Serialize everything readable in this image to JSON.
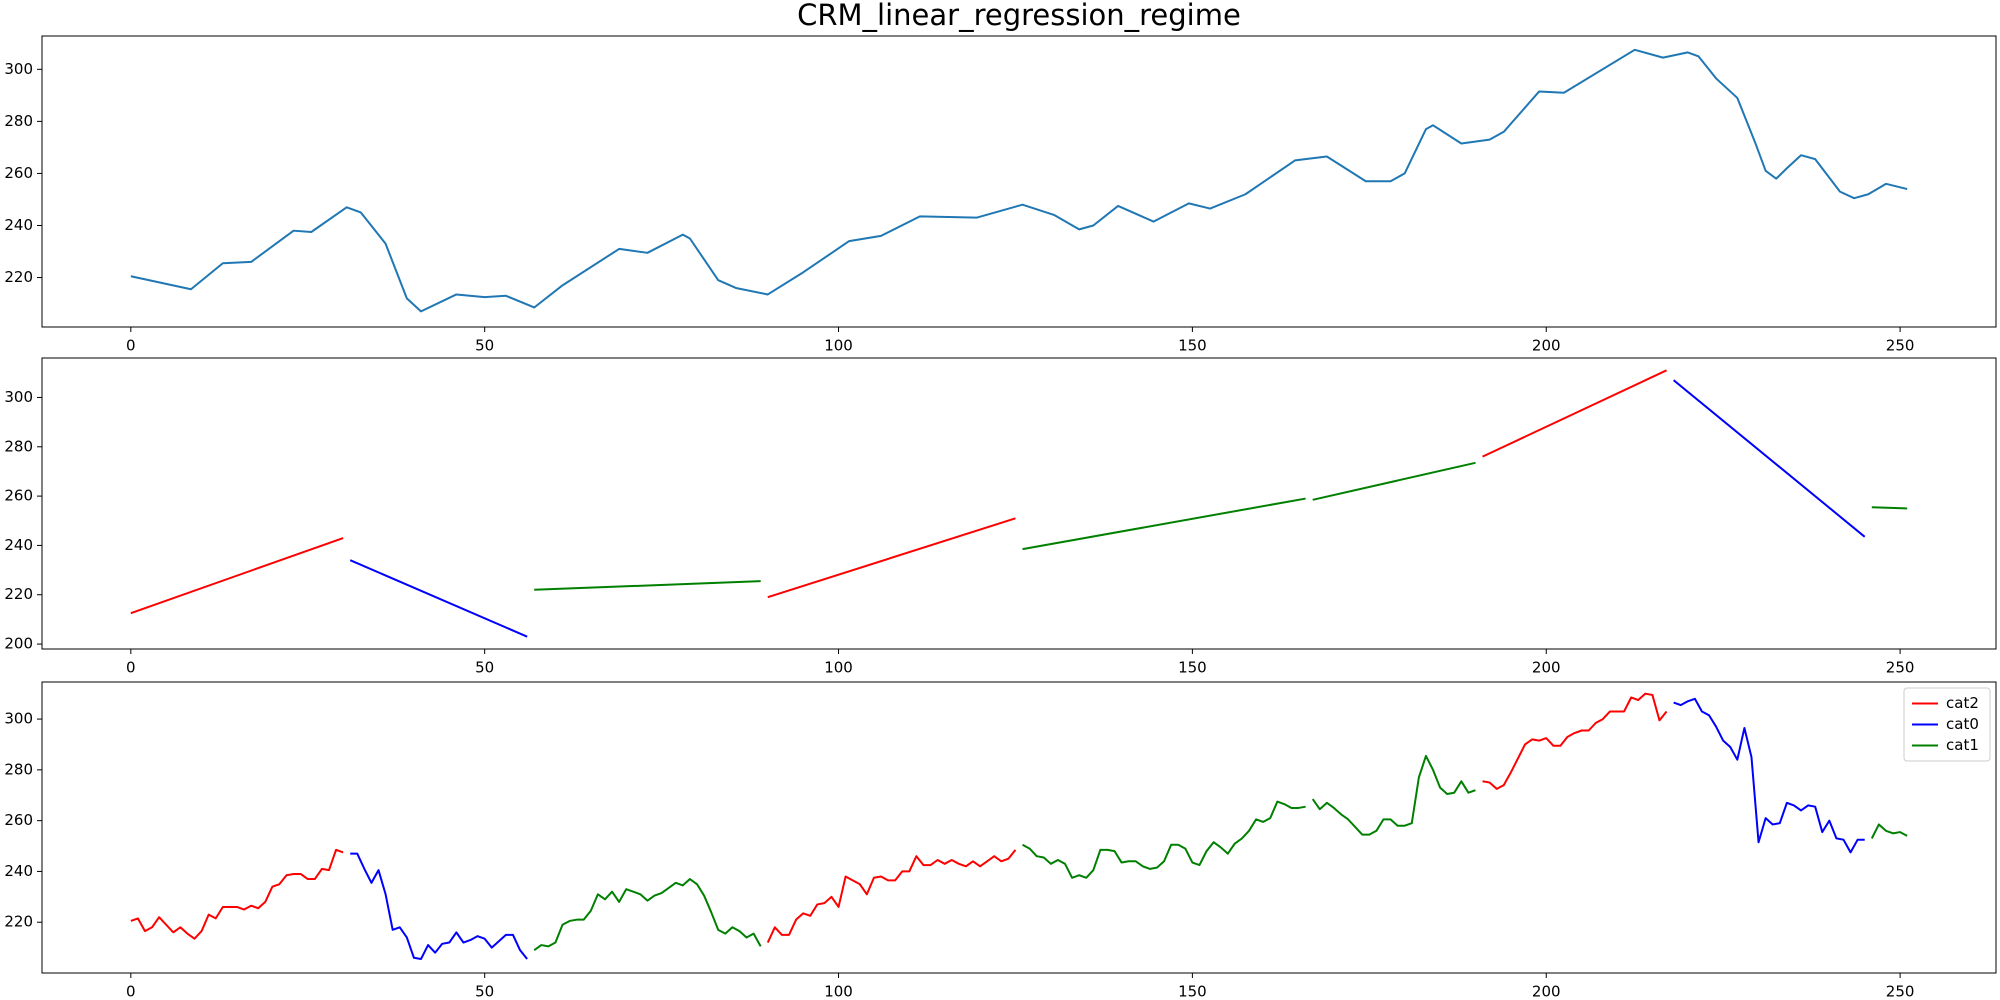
{
  "chart_data": [
    {
      "type": "line",
      "title": "CRM_linear_regression_regime",
      "xlim": [
        -12.55,
        263.55
      ],
      "ylim": [
        201,
        312.8
      ],
      "xticks": [
        0,
        50,
        100,
        150,
        200,
        250
      ],
      "yticks": [
        220,
        240,
        260,
        280,
        300
      ],
      "series": [
        {
          "color": "#1f77b4",
          "x": [
            0,
            8.5,
            13,
            17,
            23,
            25.5,
            30.5,
            32.5,
            36,
            39,
            41,
            46,
            50,
            53,
            57,
            61,
            69,
            73,
            78,
            79,
            83,
            85.5,
            90,
            95,
            101.5,
            106,
            111.5,
            119.5,
            126,
            130.5,
            134,
            136,
            139.5,
            144.5,
            149.5,
            152.5,
            157.5,
            164.5,
            169,
            174.5,
            178,
            180,
            183,
            184,
            188,
            192,
            194,
            199,
            202.5,
            212.5,
            216.5,
            220,
            221.5,
            224,
            227,
            229.5,
            231,
            232.5,
            234,
            236,
            238,
            241.5,
            243.5,
            245.5,
            248,
            251
          ],
          "values": [
            220.5,
            215.5,
            225.5,
            226,
            238,
            237.5,
            247,
            245,
            233,
            212,
            207,
            213.5,
            212.5,
            213,
            208.5,
            217,
            231,
            229.5,
            236.5,
            235,
            219,
            216,
            213.5,
            222,
            234,
            236,
            243.5,
            243,
            248,
            244,
            238.5,
            240,
            247.5,
            241.5,
            248.5,
            246.5,
            252,
            265,
            266.5,
            257,
            257,
            260,
            277,
            278.5,
            271.5,
            273,
            276,
            291.5,
            291,
            307.5,
            304.5,
            306.5,
            305,
            296.5,
            289,
            272,
            261,
            258,
            262,
            267,
            265.5,
            253,
            250.5,
            252,
            256,
            254
          ]
        }
      ]
    },
    {
      "type": "line",
      "xlim": [
        -12.55,
        263.55
      ],
      "ylim": [
        198,
        316
      ],
      "xticks": [
        0,
        50,
        100,
        150,
        200,
        250
      ],
      "yticks": [
        200,
        220,
        240,
        260,
        280,
        300
      ],
      "series": [
        {
          "color": "#ff0000",
          "x": [
            0,
            30
          ],
          "values": [
            212.5,
            243
          ]
        },
        {
          "color": "#0000ff",
          "x": [
            31,
            56
          ],
          "values": [
            234,
            203
          ]
        },
        {
          "color": "#008000",
          "x": [
            57,
            89
          ],
          "values": [
            222,
            225.5
          ]
        },
        {
          "color": "#ff0000",
          "x": [
            90,
            125
          ],
          "values": [
            219,
            251
          ]
        },
        {
          "color": "#008000",
          "x": [
            126,
            166
          ],
          "values": [
            238.5,
            259
          ]
        },
        {
          "color": "#008000",
          "x": [
            167,
            190
          ],
          "values": [
            258.5,
            273.5
          ]
        },
        {
          "color": "#ff0000",
          "x": [
            191,
            217
          ],
          "values": [
            276,
            311
          ]
        },
        {
          "color": "#0000ff",
          "x": [
            218,
            245
          ],
          "values": [
            307,
            243.5
          ]
        },
        {
          "color": "#008000",
          "x": [
            246,
            251
          ],
          "values": [
            255.5,
            255
          ]
        }
      ]
    },
    {
      "type": "line",
      "xlim": [
        -12.55,
        263.55
      ],
      "ylim": [
        200,
        314.6
      ],
      "xticks": [
        0,
        50,
        100,
        150,
        200,
        250
      ],
      "yticks": [
        220,
        240,
        260,
        280,
        300
      ],
      "legend": "upper right",
      "series": [
        {
          "name": "cat2",
          "color": "#ff0000",
          "x": [
            0,
            1,
            2,
            3,
            4,
            5,
            6,
            7,
            8,
            9,
            10,
            11,
            12,
            13,
            14,
            15,
            16,
            17,
            18,
            19,
            20,
            21,
            22,
            23,
            24,
            25,
            26,
            27,
            28,
            29,
            30,
            null,
            90,
            91,
            92,
            93,
            94,
            95,
            96,
            97,
            98,
            99,
            100,
            101,
            102,
            103,
            104,
            105,
            106,
            107,
            108,
            109,
            110,
            111,
            112,
            113,
            114,
            115,
            116,
            117,
            118,
            119,
            120,
            121,
            122,
            123,
            124,
            125,
            null,
            191,
            192,
            193,
            194,
            195,
            196,
            197,
            198,
            199,
            200,
            201,
            202,
            203,
            204,
            205,
            206,
            207,
            208,
            209,
            210,
            211,
            212,
            213,
            214,
            215,
            216,
            217
          ],
          "values": [
            220.5,
            221.5,
            216.5,
            218,
            222,
            219,
            216,
            218,
            215.5,
            213.5,
            216.5,
            223,
            221.5,
            226,
            226,
            226,
            225,
            226.5,
            225.5,
            228,
            234,
            235,
            238.5,
            239,
            239,
            237,
            237,
            241,
            240.5,
            248.5,
            247.5,
            null,
            212,
            218,
            215,
            215,
            221,
            223.5,
            222.5,
            227,
            227.5,
            230,
            226,
            238,
            236.5,
            235,
            231,
            237.5,
            238,
            236.5,
            236.5,
            240,
            240,
            246,
            242.5,
            242.5,
            244.5,
            243,
            244.5,
            243,
            242,
            244,
            242,
            244,
            246,
            244,
            245,
            248.5,
            null,
            275.5,
            275,
            272.5,
            274,
            279,
            284.5,
            290,
            292,
            291.5,
            292.5,
            289.5,
            289.5,
            293,
            294.5,
            295.5,
            295.5,
            298.5,
            300,
            303,
            303,
            303,
            308.5,
            307.5,
            310,
            309.5,
            299.5,
            303
          ]
        },
        {
          "name": "cat0",
          "color": "#0000ff",
          "x": [
            31,
            32,
            33,
            34,
            35,
            36,
            37,
            38,
            39,
            40,
            41,
            42,
            43,
            44,
            45,
            46,
            47,
            48,
            49,
            50,
            51,
            52,
            53,
            54,
            55,
            56,
            null,
            218,
            219,
            220,
            221,
            222,
            223,
            224,
            225,
            226,
            227,
            228,
            229,
            230,
            231,
            232,
            233,
            234,
            235,
            236,
            237,
            238,
            239,
            240,
            241,
            242,
            243,
            244,
            245
          ],
          "values": [
            247,
            247,
            241,
            235.5,
            240.5,
            231,
            217,
            218,
            214,
            206,
            205.5,
            211,
            208,
            211.5,
            212,
            216,
            212,
            213,
            214.5,
            213.5,
            210,
            212.5,
            215,
            215,
            209,
            205.5,
            null,
            306.5,
            305.5,
            307,
            308,
            303,
            301.5,
            297,
            291.5,
            289,
            284,
            296.5,
            285,
            251.5,
            261,
            258.5,
            259,
            267,
            266,
            264,
            266,
            265.5,
            255.5,
            260,
            253,
            252.5,
            247.5,
            252.5,
            252.5
          ]
        },
        {
          "name": "cat1",
          "color": "#008000",
          "x": [
            57,
            58,
            59,
            60,
            61,
            62,
            63,
            64,
            65,
            66,
            67,
            68,
            69,
            70,
            71,
            72,
            73,
            74,
            75,
            76,
            77,
            78,
            79,
            80,
            81,
            82,
            83,
            84,
            85,
            86,
            87,
            88,
            89,
            null,
            126,
            127,
            128,
            129,
            130,
            131,
            132,
            133,
            134,
            135,
            136,
            137,
            138,
            139,
            140,
            141,
            142,
            143,
            144,
            145,
            146,
            147,
            148,
            149,
            150,
            151,
            152,
            153,
            154,
            155,
            156,
            157,
            158,
            159,
            160,
            161,
            162,
            163,
            164,
            165,
            166,
            null,
            167,
            168,
            169,
            170,
            171,
            172,
            173,
            174,
            175,
            176,
            177,
            178,
            179,
            180,
            181,
            182,
            183,
            184,
            185,
            186,
            187,
            188,
            189,
            190,
            null,
            246,
            247,
            248,
            249,
            250,
            251
          ],
          "values": [
            209,
            211,
            210.5,
            212,
            219,
            220.5,
            221,
            221,
            224.5,
            231,
            229,
            232,
            228,
            233,
            232,
            231,
            228.5,
            230.5,
            231.5,
            233.5,
            235.5,
            234.5,
            237,
            235,
            230.5,
            224,
            217,
            215.5,
            218,
            216.5,
            214,
            215.5,
            210.5,
            null,
            250.5,
            249,
            246,
            245.5,
            243,
            244.5,
            243,
            237.5,
            238.5,
            237.5,
            240.5,
            248.5,
            248.5,
            248,
            243.5,
            244,
            244,
            242,
            241,
            241.5,
            244,
            250.5,
            250.5,
            249,
            243.5,
            242.5,
            248,
            251.5,
            249.5,
            247,
            251,
            253,
            256,
            260.5,
            259.5,
            261,
            267.5,
            266.5,
            265,
            265,
            265.5,
            null,
            268.5,
            264.5,
            267,
            265,
            262.5,
            260.5,
            257.5,
            254.5,
            254.5,
            256,
            260.5,
            260.5,
            258,
            258,
            259,
            277,
            285.5,
            280,
            273,
            270.5,
            271,
            275.5,
            271,
            272,
            null,
            253,
            258.5,
            256,
            255,
            255.5,
            254
          ]
        }
      ]
    }
  ]
}
